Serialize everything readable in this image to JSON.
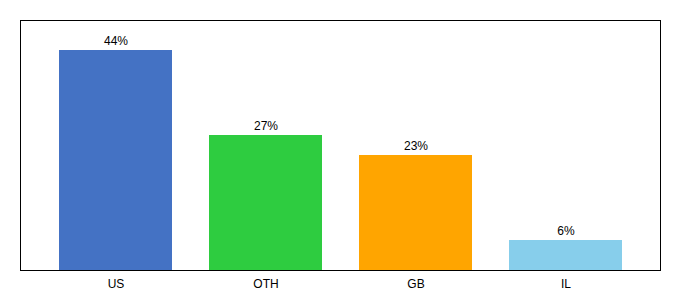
{
  "chart_data": {
    "type": "bar",
    "categories": [
      "US",
      "OTH",
      "GB",
      "IL"
    ],
    "values": [
      44,
      27,
      23,
      6
    ],
    "value_labels": [
      "44%",
      "27%",
      "23%",
      "6%"
    ],
    "colors": [
      "#4472C4",
      "#2ECC40",
      "#FFA500",
      "#87CEEB"
    ],
    "ylim": [
      0,
      50
    ],
    "yticks": [],
    "data_labels": true,
    "tick_labels": "x",
    "grid": false
  }
}
